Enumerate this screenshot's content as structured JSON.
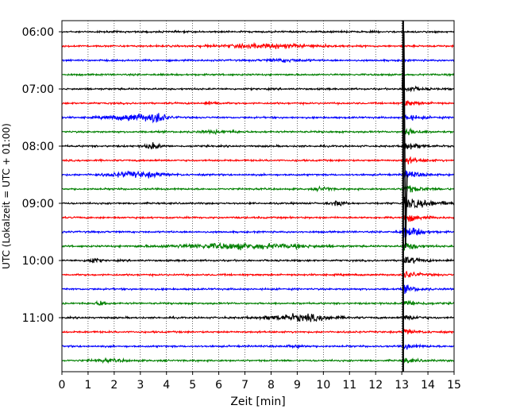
{
  "chart_data": {
    "type": "line",
    "xlabel": "Zeit  [min]",
    "ylabel": "UTC (Lokalzeit = UTC + 01:00)",
    "xlim": [
      0,
      15
    ],
    "x_ticks": [
      "0",
      "1",
      "2",
      "3",
      "4",
      "5",
      "6",
      "7",
      "8",
      "9",
      "10",
      "11",
      "12",
      "13",
      "14",
      "15"
    ],
    "y_ticks": [
      "06:00",
      "07:00",
      "08:00",
      "09:00",
      "10:00",
      "11:00"
    ],
    "grid": "vertical-dotted",
    "rows_per_hour": 4,
    "row_minutes": 15,
    "start_time": "06:00",
    "trace_count": 24,
    "trace_colors": [
      "#000000",
      "#ff0000",
      "#0000ff",
      "#008000"
    ],
    "noise_amplitude": 1.5,
    "events": [
      {
        "row": 1,
        "t": 8.0,
        "dur": 4.0,
        "amp": 3.0
      },
      {
        "row": 2,
        "t": 8.6,
        "dur": 1.6,
        "amp": 2.0
      },
      {
        "row": 5,
        "t": 5.8,
        "dur": 0.6,
        "amp": 2.5
      },
      {
        "row": 6,
        "t": 2.8,
        "dur": 2.0,
        "amp": 5.5
      },
      {
        "row": 6,
        "t": 3.7,
        "dur": 0.6,
        "amp": 6.5
      },
      {
        "row": 7,
        "t": 6.0,
        "dur": 1.6,
        "amp": 2.0
      },
      {
        "row": 8,
        "t": 3.5,
        "dur": 0.6,
        "amp": 4.5
      },
      {
        "row": 10,
        "t": 2.8,
        "dur": 2.2,
        "amp": 4.5
      },
      {
        "row": 11,
        "t": 10.0,
        "dur": 0.6,
        "amp": 3.0
      },
      {
        "row": 12,
        "t": 10.6,
        "dur": 0.5,
        "amp": 4.5
      },
      {
        "row": 14,
        "t": 13.4,
        "dur": 1.0,
        "amp": 3.0
      },
      {
        "row": 15,
        "t": 6.8,
        "dur": 5.0,
        "amp": 4.5
      },
      {
        "row": 16,
        "t": 1.2,
        "dur": 0.5,
        "amp": 4.0
      },
      {
        "row": 19,
        "t": 1.5,
        "dur": 0.4,
        "amp": 4.0
      },
      {
        "row": 20,
        "t": 9.2,
        "dur": 2.6,
        "amp": 5.5
      },
      {
        "row": 22,
        "t": 9.0,
        "dur": 0.8,
        "amp": 2.0
      },
      {
        "row": 23,
        "t": 1.8,
        "dur": 1.4,
        "amp": 2.0
      }
    ],
    "big_event": {
      "t": 13.05,
      "first_row": 4,
      "last_row": 23,
      "peak_row": 12,
      "decay_minutes": 1.2
    },
    "big_event_marker_min": 13.05
  }
}
